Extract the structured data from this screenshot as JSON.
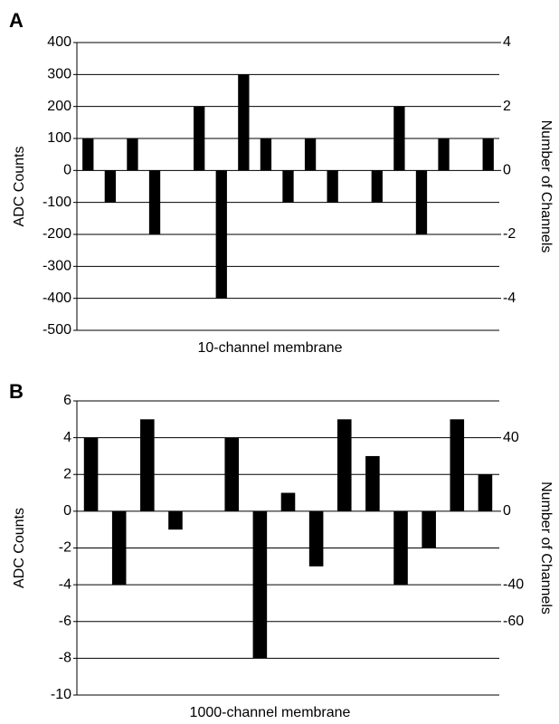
{
  "chart_data": [
    {
      "type": "bar",
      "panel": "A",
      "x_label": "10-channel membrane",
      "y_label": "ADC Counts",
      "y2_label": "Number of Channels",
      "categories": [
        null,
        null,
        null,
        null,
        null,
        null,
        null,
        null,
        null,
        null,
        null,
        null,
        null,
        null,
        null,
        null,
        null,
        null,
        null
      ],
      "values": [
        100,
        -100,
        100,
        -200,
        0,
        200,
        -400,
        300,
        100,
        -100,
        100,
        -100,
        0,
        -100,
        200,
        -200,
        100,
        0,
        100
      ],
      "color": "#000000",
      "grid": true,
      "ylim": [
        -500,
        400
      ],
      "yticks": [
        -500,
        -400,
        -300,
        -200,
        -100,
        0,
        100,
        200,
        300,
        400
      ],
      "y2lim": [
        -5,
        4
      ],
      "y2ticks": [
        -4,
        -2,
        0,
        2,
        4
      ]
    },
    {
      "type": "bar",
      "panel": "B",
      "x_label": "1000-channel membrane",
      "y_label": "ADC Counts",
      "y2_label": "Number of Channels",
      "categories": [
        null,
        null,
        null,
        null,
        null,
        null,
        null,
        null,
        null,
        null,
        null,
        null,
        null,
        null,
        null
      ],
      "values": [
        4,
        -4,
        5,
        -1,
        0,
        4,
        -8,
        1,
        -3,
        5,
        3,
        -4,
        -2,
        5,
        2
      ],
      "color": "#000000",
      "grid": true,
      "ylim": [
        -10,
        6
      ],
      "yticks": [
        -10,
        -8,
        -6,
        -4,
        -2,
        0,
        2,
        4,
        6
      ],
      "y2lim": [
        -100,
        60
      ],
      "y2ticks": [
        -60,
        -40,
        0,
        40
      ]
    }
  ]
}
